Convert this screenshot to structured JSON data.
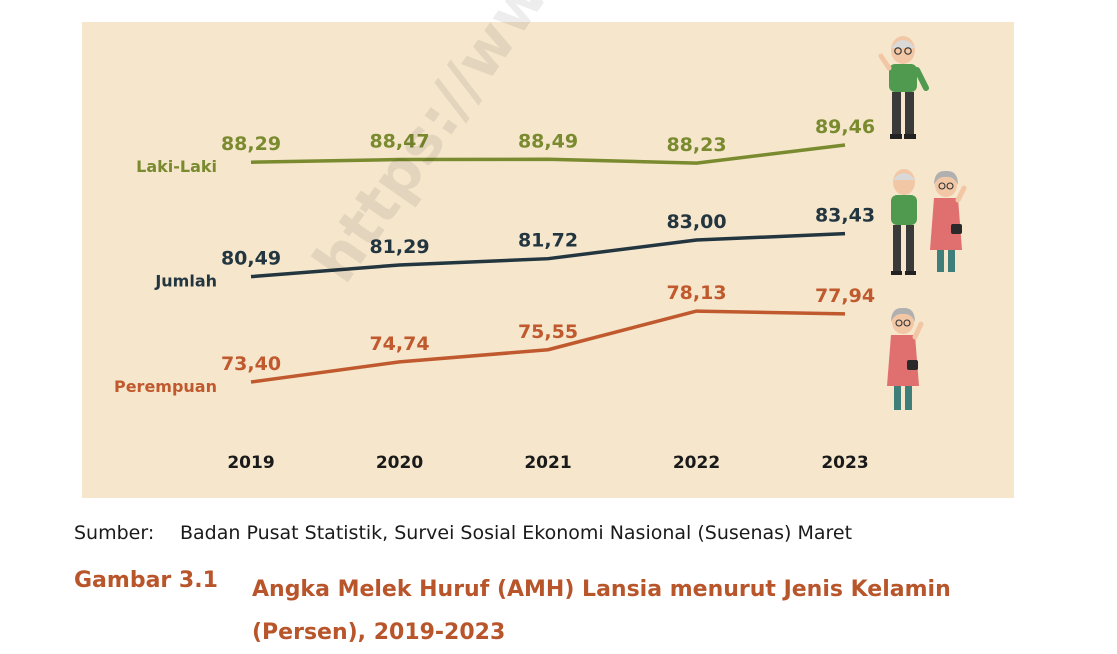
{
  "chart_data": {
    "type": "line",
    "title": "Angka Melek Huruf (AMH) Lansia menurut Jenis Kelamin (Persen), 2019-2023",
    "categories": [
      "2019",
      "2020",
      "2021",
      "2022",
      "2023"
    ],
    "series": [
      {
        "name": "Laki-Laki",
        "color": "#7a8a2e",
        "values": [
          88.29,
          88.47,
          88.49,
          88.23,
          89.46
        ],
        "labels": [
          "88,29",
          "88,47",
          "88,49",
          "88,23",
          "89,46"
        ]
      },
      {
        "name": "Jumlah",
        "color": "#233640",
        "values": [
          80.49,
          81.29,
          81.72,
          83.0,
          83.43
        ],
        "labels": [
          "80,49",
          "81,29",
          "81,72",
          "83,00",
          "83,43"
        ]
      },
      {
        "name": "Perempuan",
        "color": "#c05a2e",
        "values": [
          73.4,
          74.74,
          75.55,
          78.13,
          77.94
        ],
        "labels": [
          "73,40",
          "74,74",
          "75,55",
          "78,13",
          "77,94"
        ]
      }
    ],
    "background": "#f5e6cc",
    "grid": false,
    "legend": "left, inline labels"
  },
  "watermark": "https://www.bps.go.id",
  "source": {
    "label": "Sumber:",
    "text": "Badan Pusat Statistik, Survei Sosial Ekonomi Nasional (Susenas) Maret"
  },
  "caption": {
    "number": "Gambar 3.1",
    "title": "Angka Melek Huruf (AMH) Lansia menurut Jenis Kelamin (Persen), 2019-2023"
  },
  "illustrations": [
    "elderly-man-icon",
    "elderly-couple-icon",
    "elderly-woman-icon"
  ]
}
